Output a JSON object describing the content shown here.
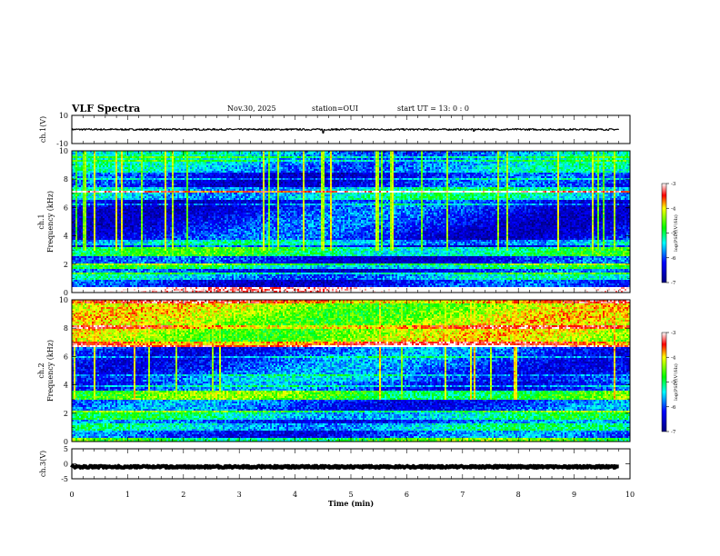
{
  "header": {
    "title": "VLF Spectra",
    "date": "Nov.30, 2025",
    "station": "station=OUI",
    "start_ut": "start  UT =   13: 0  : 0"
  },
  "chart_data": {
    "type": "heatmap",
    "xlabel": "Time  (min)",
    "xlim": [
      0,
      10
    ],
    "xticks": [
      "0",
      "1",
      "2",
      "3",
      "4",
      "5",
      "6",
      "7",
      "8",
      "9",
      "10"
    ],
    "panels": [
      {
        "name": "ch1-waveform",
        "kind": "waveform",
        "ylabel": "ch.1(V)",
        "ylim": [
          -10,
          10
        ],
        "yticks": [
          "10",
          "-10"
        ],
        "baseline": 0,
        "amplitude": 0.6,
        "spikes": [
          {
            "t": 4.5,
            "v": -2.5
          },
          {
            "t": 7.2,
            "v": -1.2
          }
        ]
      },
      {
        "name": "ch1-spectrogram",
        "kind": "spectrogram",
        "ylabel_1": "ch.1",
        "ylabel_2": "Frequency  (kHz)",
        "ylim": [
          0,
          10
        ],
        "yticks": [
          "0",
          "2",
          "4",
          "6",
          "8",
          "10"
        ],
        "bands": [
          {
            "f0": 0.0,
            "f1": 0.35,
            "level": -2.8
          },
          {
            "f0": 0.9,
            "f1": 1.4,
            "level": -5.6
          },
          {
            "f0": 1.7,
            "f1": 2.1,
            "level": -5.2
          },
          {
            "f0": 2.6,
            "f1": 3.2,
            "level": -5.0
          },
          {
            "f0": 3.3,
            "f1": 3.6,
            "level": -5.5
          },
          {
            "f0": 4.3,
            "f1": 4.7,
            "level": -6.8
          },
          {
            "f0": 5.0,
            "f1": 5.3,
            "level": -6.9
          },
          {
            "f0": 6.6,
            "f1": 7.4,
            "level": -5.4
          },
          {
            "f0": 7.1,
            "f1": 7.2,
            "level": -3.2
          },
          {
            "f0": 8.5,
            "f1": 10.0,
            "level": -5.6
          }
        ],
        "background_level": -6.2,
        "sferic_level": -4.6,
        "colorbar": {
          "label": "log(PSD)(V²/Hz)",
          "min": -7,
          "max": -3,
          "ticks": [
            "-3",
            "-4",
            "-5",
            "-6",
            "-7"
          ]
        }
      },
      {
        "name": "ch2-spectrogram",
        "kind": "spectrogram",
        "ylabel_1": "ch.2",
        "ylabel_2": "Frequency  (kHz)",
        "ylim": [
          0,
          10
        ],
        "yticks": [
          "0",
          "2",
          "4",
          "6",
          "8",
          "10"
        ],
        "bands": [
          {
            "f0": 0.0,
            "f1": 0.3,
            "level": -4.8
          },
          {
            "f0": 0.8,
            "f1": 1.3,
            "level": -5.4
          },
          {
            "f0": 1.6,
            "f1": 2.2,
            "level": -5.3
          },
          {
            "f0": 3.0,
            "f1": 3.6,
            "level": -4.7
          },
          {
            "f0": 4.2,
            "f1": 4.6,
            "level": -5.8
          },
          {
            "f0": 6.7,
            "f1": 7.0,
            "level": -3.6
          },
          {
            "f0": 7.0,
            "f1": 10.0,
            "level": -4.3
          }
        ],
        "background_level": -6.0,
        "sferic_level": -4.4,
        "colorbar": {
          "label": "log(PSD)(V²/Hz)",
          "min": -7,
          "max": -3,
          "ticks": [
            "-3",
            "-4",
            "-5",
            "-6",
            "-7"
          ]
        }
      },
      {
        "name": "ch3-waveform",
        "kind": "waveform",
        "ylabel": "ch.3(V)",
        "ylim": [
          -5,
          5
        ],
        "yticks": [
          "5",
          "0",
          "-5"
        ],
        "baseline": -1,
        "amplitude": 0.35,
        "spikes": []
      }
    ]
  }
}
